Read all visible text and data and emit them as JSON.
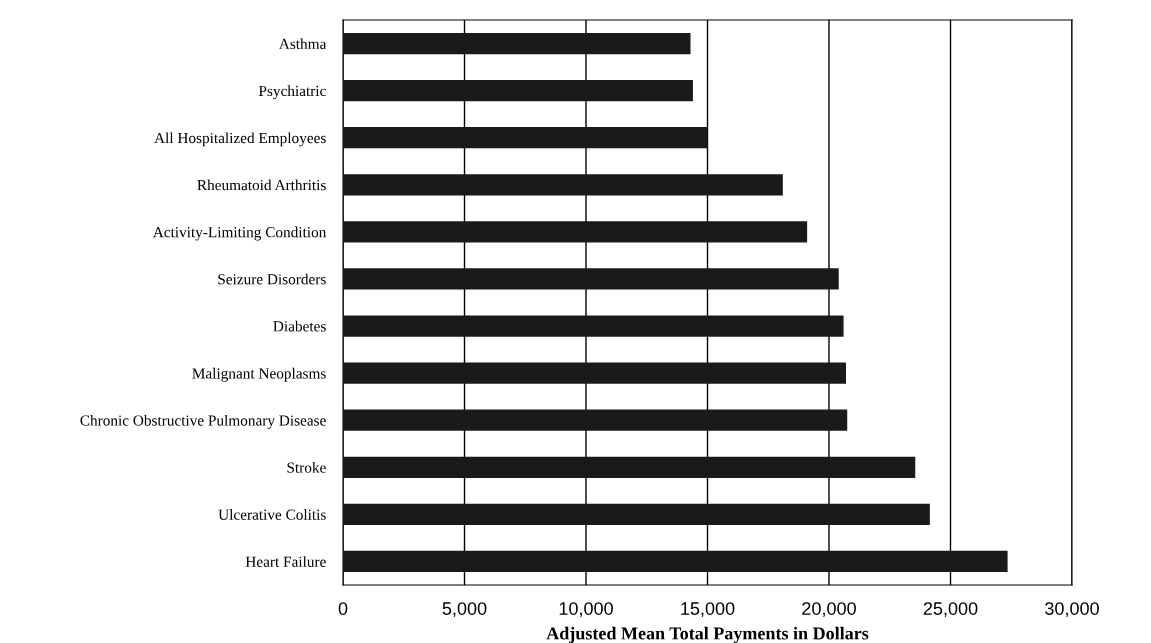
{
  "chart_data": {
    "type": "bar",
    "orientation": "horizontal",
    "xlabel": "Adjusted Mean Total Payments in Dollars",
    "categories": [
      "Asthma",
      "Psychiatric",
      "All Hospitalized Employees",
      "Rheumatoid Arthritis",
      "Activity-Limiting Condition",
      "Seizure Disorders",
      "Diabetes",
      "Malignant Neoplasms",
      "Chronic Obstructive Pulmonary Disease",
      "Stroke",
      "Ulcerative Colitis",
      "Heart Failure"
    ],
    "values": [
      14300,
      14400,
      15000,
      18100,
      19100,
      20400,
      20600,
      20700,
      20750,
      23550,
      24150,
      27350
    ],
    "color": "#1a1a1a",
    "xlim": [
      0,
      30000
    ],
    "xticks": [
      {
        "value": 0,
        "label": "0"
      },
      {
        "value": 5000,
        "label": "5,000"
      },
      {
        "value": 10000,
        "label": "10,000"
      },
      {
        "value": 15000,
        "label": "15,000"
      },
      {
        "value": 20000,
        "label": "20,000"
      },
      {
        "value": 25000,
        "label": "25,000"
      },
      {
        "value": 30000,
        "label": "30,000"
      }
    ],
    "grid": "x",
    "legend": false
  }
}
